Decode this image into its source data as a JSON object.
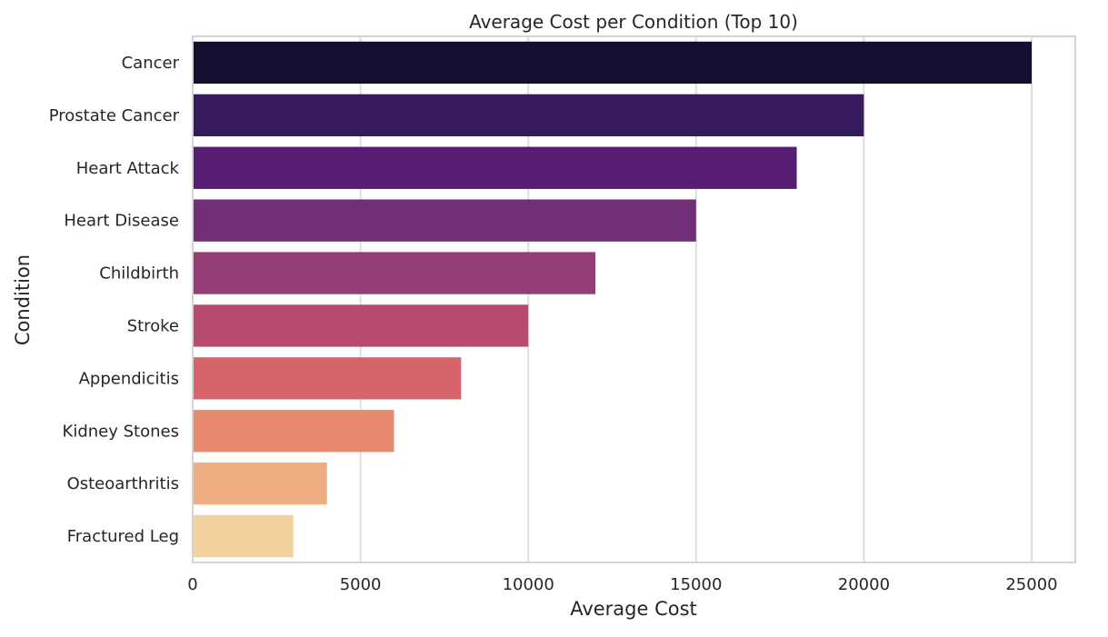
{
  "chart_data": {
    "type": "bar",
    "orientation": "horizontal",
    "title": "Average Cost per Condition (Top 10)",
    "xlabel": "Average Cost",
    "ylabel": "Condition",
    "categories": [
      "Cancer",
      "Prostate Cancer",
      "Heart Attack",
      "Heart Disease",
      "Childbirth",
      "Stroke",
      "Appendicitis",
      "Kidney Stones",
      "Osteoarthritis",
      "Fractured Leg"
    ],
    "values": [
      25000,
      20000,
      18000,
      15000,
      12000,
      10000,
      8000,
      6000,
      4000,
      3000
    ],
    "xlim": [
      0,
      26300
    ],
    "xticks": [
      0,
      5000,
      10000,
      15000,
      20000,
      25000
    ],
    "xtick_labels": [
      "0",
      "5000",
      "10000",
      "15000",
      "20000",
      "25000"
    ],
    "grid": "vertical",
    "colors": [
      "#140f2e",
      "#361a5e",
      "#561d73",
      "#722e76",
      "#933e75",
      "#b84b71",
      "#d6646c",
      "#e88a6e",
      "#edaf81",
      "#f2d29e"
    ],
    "frame_color": "#d3d3d3",
    "grid_color": "#dedede"
  }
}
